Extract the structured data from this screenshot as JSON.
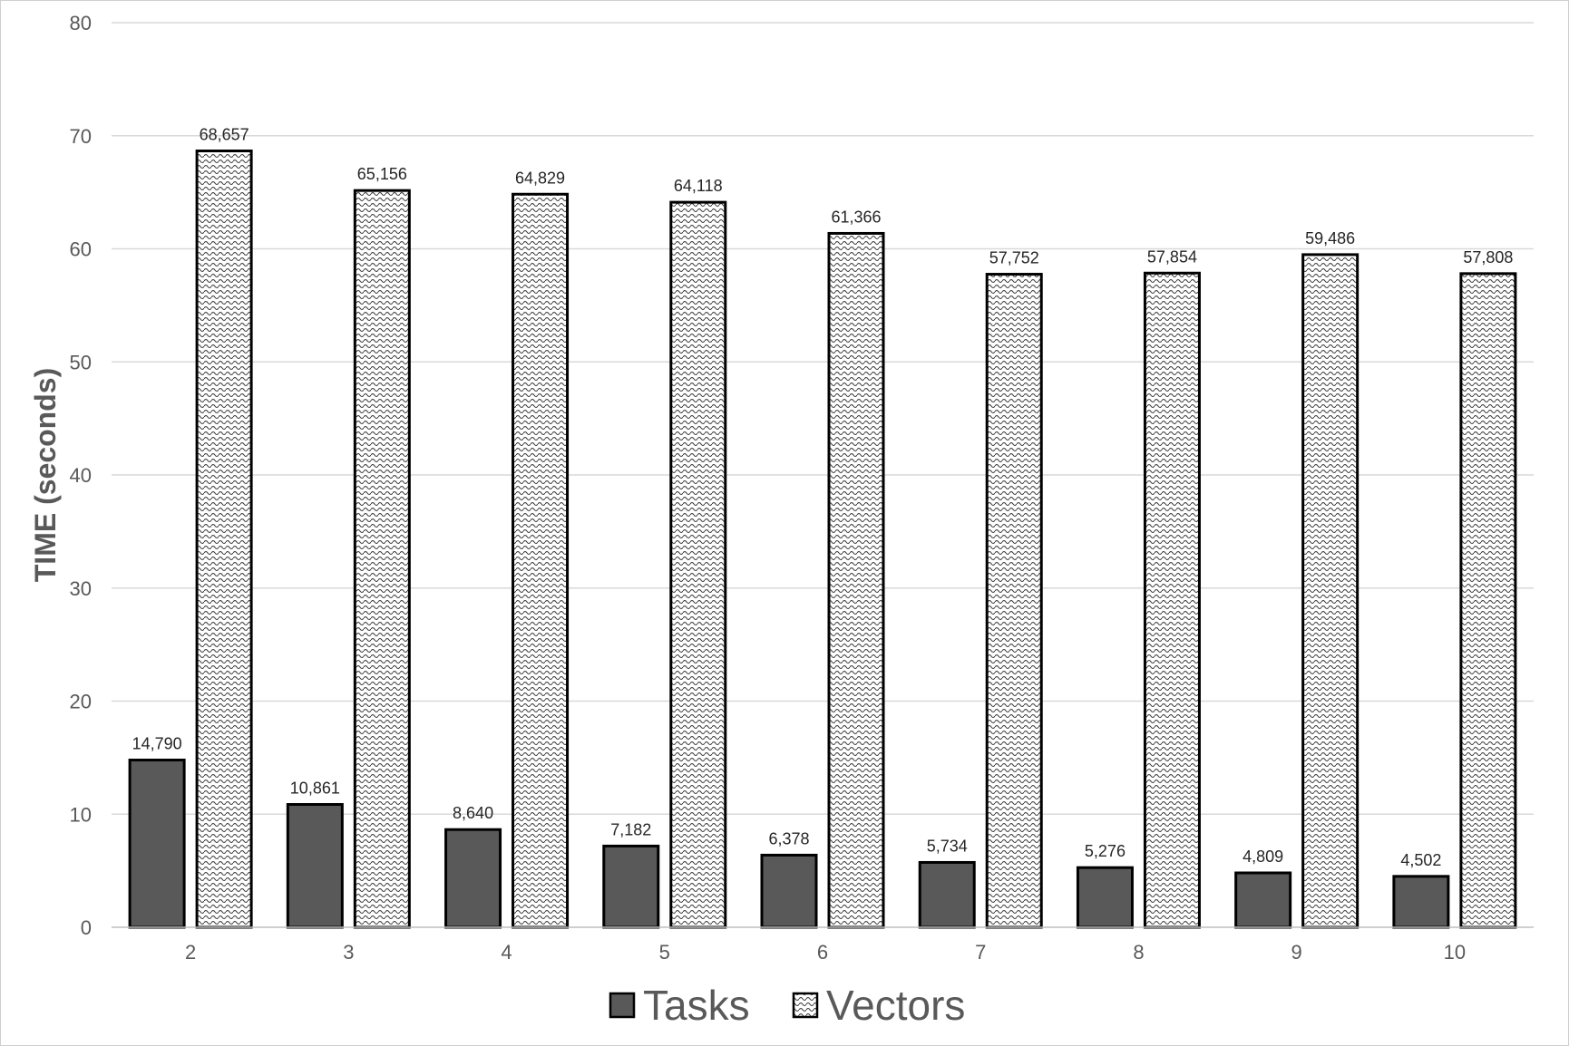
{
  "chart_data": {
    "type": "bar",
    "title": "",
    "xlabel": "",
    "ylabel": "TIME (seconds)",
    "categories": [
      "2",
      "3",
      "4",
      "5",
      "6",
      "7",
      "8",
      "9",
      "10"
    ],
    "series": [
      {
        "name": "Tasks",
        "values": [
          14.79,
          10.861,
          8.64,
          7.182,
          6.378,
          5.734,
          5.276,
          4.809,
          4.502
        ],
        "labels": [
          "14,790",
          "10,861",
          "8,640",
          "7,182",
          "6,378",
          "5,734",
          "5,276",
          "4,809",
          "4,502"
        ],
        "color": "#595959"
      },
      {
        "name": "Vectors",
        "values": [
          68.657,
          65.156,
          64.829,
          64.118,
          61.366,
          57.752,
          57.854,
          59.486,
          57.808
        ],
        "labels": [
          "68,657",
          "65,156",
          "64,829",
          "64,118",
          "61,366",
          "57,752",
          "57,854",
          "59,486",
          "57,808"
        ],
        "color": "#ffffff",
        "pattern": "wave"
      }
    ],
    "ylim": [
      0,
      80
    ],
    "yticks": [
      "0",
      "10",
      "20",
      "30",
      "40",
      "50",
      "60",
      "70",
      "80"
    ],
    "grid": true,
    "legend": "bottom-center"
  }
}
